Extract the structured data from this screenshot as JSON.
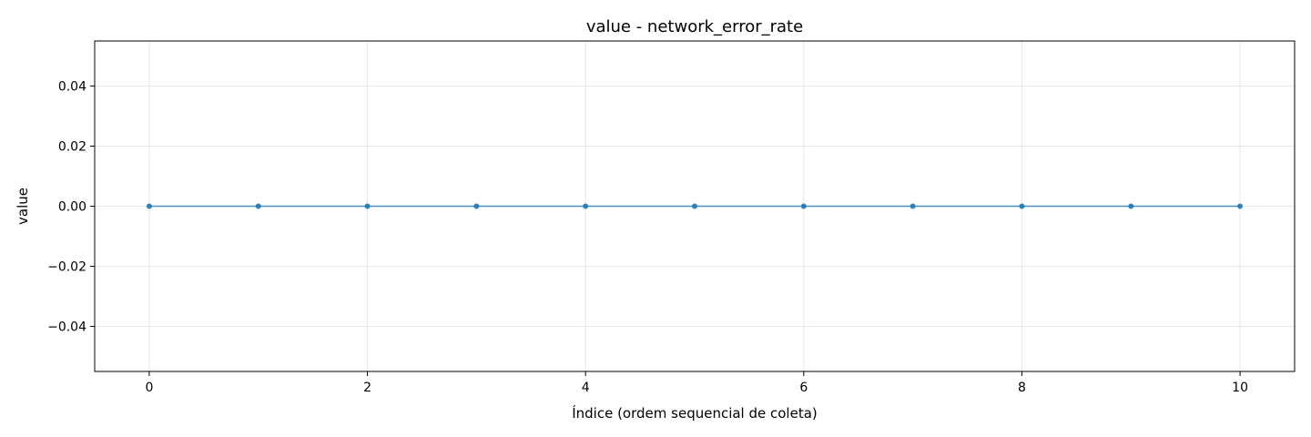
{
  "chart_data": {
    "type": "line",
    "title": "value - network_error_rate",
    "xlabel": "Índice (ordem sequencial de coleta)",
    "ylabel": "value",
    "xlim": [
      -0.5,
      10.5
    ],
    "ylim": [
      -0.055,
      0.055
    ],
    "xticks": [
      0,
      2,
      4,
      6,
      8,
      10
    ],
    "xtick_labels": [
      "0",
      "2",
      "4",
      "6",
      "8",
      "10"
    ],
    "yticks": [
      -0.04,
      -0.02,
      0.0,
      0.02,
      0.04
    ],
    "ytick_labels": [
      "−0.04",
      "−0.02",
      "0.00",
      "0.02",
      "0.04"
    ],
    "grid": true,
    "series": [
      {
        "x": [
          0,
          1,
          2,
          3,
          4,
          5,
          6,
          7,
          8,
          9,
          10
        ],
        "y": [
          0,
          0,
          0,
          0,
          0,
          0,
          0,
          0,
          0,
          0,
          0
        ],
        "color": "#1f77b4",
        "marker": "circle"
      }
    ]
  }
}
